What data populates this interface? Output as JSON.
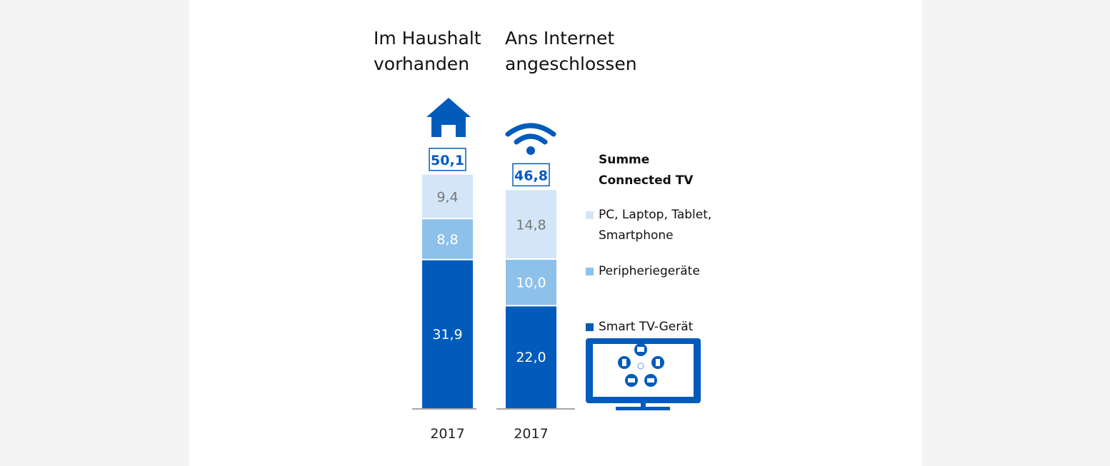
{
  "chart_data": {
    "type": "bar",
    "stacked": true,
    "categories": [
      "2017",
      "2017"
    ],
    "group_titles": [
      "Im Haushalt\nvorhanden",
      "Ans Internet\nangeschlossen"
    ],
    "totals": [
      "50,1",
      "46,8"
    ],
    "legend_title": "Summe\nConnected TV",
    "series": [
      {
        "name": "Smart TV-Gerät",
        "values": [
          31.9,
          22.0
        ],
        "labels": [
          "31,9",
          "22,0"
        ],
        "color": "#005bbb"
      },
      {
        "name": "Peripheriegeräte",
        "values": [
          8.8,
          10.0
        ],
        "labels": [
          "8,8",
          "10,0"
        ],
        "color": "#8ec1ea"
      },
      {
        "name": "PC, Laptop, Tablet,\nSmartphone",
        "values": [
          9.4,
          14.8
        ],
        "labels": [
          "9,4",
          "14,8"
        ],
        "color": "#d3e6f7"
      }
    ],
    "label_colors": [
      "#ffffff",
      "#ffffff",
      "#777777"
    ],
    "icons": [
      "house-icon",
      "wifi-icon",
      "tv-devices-icon"
    ],
    "accent": "#005bbb"
  }
}
